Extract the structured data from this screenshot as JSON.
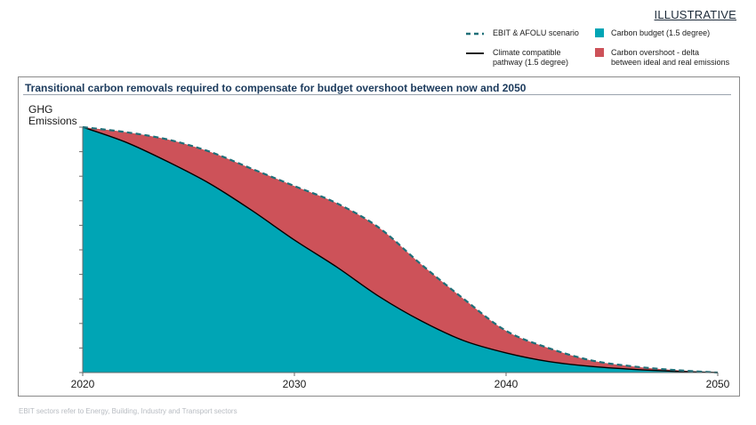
{
  "illustrative_label": "ILLUSTRATIVE",
  "legend": [
    {
      "key": "ebit",
      "label": "EBIT & AFOLU scenario",
      "kind": "dashed-line",
      "color": "#1f6f78"
    },
    {
      "key": "budget",
      "label": "Carbon budget (1.5 degree)",
      "kind": "box",
      "color": "#00a5b5"
    },
    {
      "key": "pathway",
      "label": "Climate compatible\npathway (1.5 degree)",
      "kind": "solid-line",
      "color": "#000000"
    },
    {
      "key": "overshoot",
      "label": "Carbon overshoot - delta\nbetween ideal and real emissions",
      "kind": "box",
      "color": "#cd5259"
    }
  ],
  "footnote": "EBIT sectors refer to Energy, Building, Industry and Transport sectors",
  "chart_data": {
    "type": "area",
    "title": "Transitional carbon removals required to compensate for budget overshoot between now and 2050",
    "ylabel": "GHG\nEmissions",
    "xlabel": "",
    "x_ticks": [
      "2020",
      "2030",
      "2040",
      "2050"
    ],
    "xlim": [
      2020,
      2050
    ],
    "ylim": [
      0,
      100
    ],
    "y_tick_count": 10,
    "colors": {
      "budget": "#00a5b5",
      "overshoot": "#cd5259",
      "ebit": "#1f6f78",
      "pathway": "#000000"
    },
    "series": [
      {
        "name": "EBIT & AFOLU scenario",
        "x": [
          2020,
          2022,
          2024,
          2026,
          2028,
          2030,
          2032,
          2034,
          2036,
          2038,
          2040,
          2042,
          2044,
          2046,
          2048,
          2050
        ],
        "values": [
          100,
          98,
          95,
          90,
          83,
          76,
          69,
          59,
          44,
          30,
          17,
          10,
          5,
          2.5,
          1,
          0
        ]
      },
      {
        "name": "Climate compatible pathway (1.5 degree)",
        "x": [
          2020,
          2022,
          2024,
          2026,
          2028,
          2030,
          2032,
          2034,
          2036,
          2038,
          2040,
          2042,
          2044,
          2046,
          2048,
          2050
        ],
        "values": [
          100,
          94,
          86,
          77,
          66,
          54,
          43,
          31,
          21,
          13,
          8,
          4.5,
          2.5,
          1.3,
          0.5,
          0
        ]
      }
    ]
  }
}
